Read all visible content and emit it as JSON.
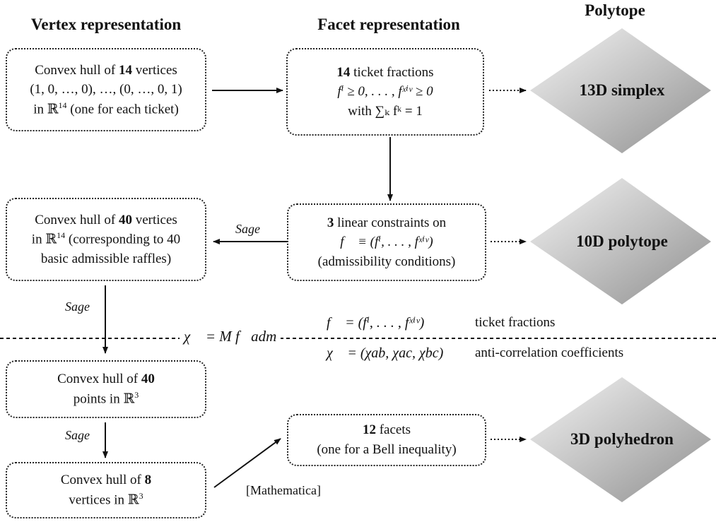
{
  "headers": {
    "vertex": "Vertex representation",
    "facet": "Facet representation",
    "polytope": "Polytope"
  },
  "row1": {
    "vertex_box": {
      "line1_pre": "Convex hull of ",
      "line1_bold": "14",
      "line1_post": " vertices",
      "line2": "(1, 0, …, 0), …, (0, …, 0, 1)",
      "line3_pre": "in ℝ",
      "line3_sup": "14",
      "line3_post": " (one for each ticket)"
    },
    "facet_box": {
      "line1_bold": "14",
      "line1_post": " ticket fractions",
      "line2": "fⁱ ≥ 0, . . . , fˣⁱᵛ ≥ 0",
      "line3": "with ∑ₖ fᵏ = 1"
    },
    "polytope": "13D simplex"
  },
  "row2": {
    "vertex_box": {
      "line1_pre": "Convex hull of ",
      "line1_bold": "40",
      "line1_post": " vertices",
      "line2_pre": "in ℝ",
      "line2_sup": "14",
      "line2_post": " (corresponding to 40",
      "line3": "basic admissible raffles)"
    },
    "facet_box": {
      "line1_bold": "3",
      "line1_post": " linear constraints on",
      "line2": "f⃗ ≡ (fⁱ, . . . , fˣⁱᵛ)",
      "line3": "(admissibility conditions)"
    },
    "arrow_label": "Sage",
    "polytope": "10D polytope"
  },
  "middle": {
    "sage_label": "Sage",
    "equation": "χ⃗ = M f⃗adm",
    "def_f": "f⃗ = (fⁱ, . . . , fˣⁱᵛ)",
    "def_f_text": "ticket fractions",
    "def_chi": "χ⃗ = (χab, χac, χbc)",
    "def_chi_text": "anti-correlation coefficients"
  },
  "row3": {
    "vertex_box": {
      "line1_pre": "Convex hull of ",
      "line1_bold": "40",
      "line2_pre": "points in ℝ",
      "line2_sup": "3"
    },
    "sage_label": "Sage"
  },
  "row4": {
    "vertex_box": {
      "line1_pre": "Convex hull of ",
      "line1_bold": "8",
      "line2_pre": "vertices in ℝ",
      "line2_sup": "3"
    },
    "facet_box": {
      "line1_bold": "12",
      "line1_post": " facets",
      "line2": "(one for a Bell inequality)"
    },
    "arrow_label": "[Mathematica]",
    "polytope": "3D polyhedron"
  }
}
